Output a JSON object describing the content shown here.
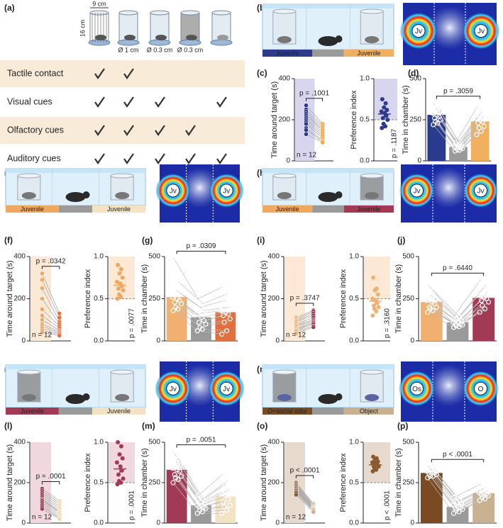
{
  "panels": [
    "(a)",
    "(b)",
    "(c)",
    "(d)",
    "(e)",
    "(f)",
    "(g)",
    "(h)",
    "(i)",
    "(j)",
    "(k)",
    "(l)",
    "(m)",
    "(n)",
    "(o)",
    "(p)"
  ],
  "cage_dims": {
    "width": "9 cm",
    "height": "16 cm"
  },
  "cage_labels": [
    "Ø 1 cm",
    "Ø 0.3 cm",
    "Ø 0.3 cm"
  ],
  "table": {
    "rows": [
      {
        "label": "Tactile contact",
        "checks": [
          true,
          true,
          false,
          false,
          false
        ]
      },
      {
        "label": "Visual cues",
        "checks": [
          true,
          true,
          true,
          false,
          true
        ]
      },
      {
        "label": "Olfactory cues",
        "checks": [
          true,
          true,
          true,
          true,
          false
        ]
      },
      {
        "label": "Auditory cues",
        "checks": [
          true,
          true,
          true,
          true,
          true
        ]
      }
    ]
  },
  "scenes": [
    {
      "left": "Juvenile",
      "left_color": "#2d3a8c",
      "right": "Juvenile",
      "right_color": "#f0b060",
      "heat_left": "Jv",
      "heat_right": "Jv"
    },
    {
      "left": "Juvenile",
      "left_color": "#f0a860",
      "right": "Juvenile",
      "right_color": "#f3e3c4",
      "heat_left": "Jv",
      "heat_right": "Jv"
    },
    {
      "left": "Juvenile",
      "left_color": "#f0a860",
      "right": "Juvenile",
      "right_color": "#a33a55",
      "heat_left": "Jv",
      "heat_right": "Jv"
    },
    {
      "left": "Juvenile",
      "left_color": "#a33a55",
      "right": "Juvenile",
      "right_color": "#f3e3c4",
      "heat_left": "Jv",
      "heat_right": "Jv"
    },
    {
      "left": "O+social odor",
      "left_color": "#7a4a22",
      "right": "Object",
      "right_color": "#c8b090",
      "heat_left": "Os",
      "heat_right": "O"
    }
  ],
  "chart_data": [
    {
      "type": "paired",
      "ylabel": "Time around target (s)",
      "ylim": [
        0,
        400
      ],
      "yticks": [
        0,
        200,
        400
      ],
      "shade": "#d8d5ee",
      "p_label": "p = .1001",
      "n_label": "n = 12",
      "series": [
        {
          "color": "#2d3a8c",
          "values": [
            270,
            250,
            240,
            230,
            220,
            210,
            200,
            190,
            180,
            160,
            150,
            130
          ]
        },
        {
          "color": "#f0a64e",
          "values": [
            180,
            170,
            160,
            150,
            150,
            140,
            130,
            120,
            110,
            100,
            95,
            90
          ]
        }
      ]
    },
    {
      "type": "strip",
      "ylabel": "Preference index",
      "ylim": [
        0,
        1
      ],
      "yticks": [
        {
          "value": 0,
          "label": "0.0"
        },
        {
          "value": 0.5,
          "label": "0.5"
        },
        {
          "value": 1,
          "label": "1.0"
        }
      ],
      "chance": 0.5,
      "shade": "#d8d5ee",
      "color": "#2d3a8c",
      "values": [
        0.75,
        0.7,
        0.65,
        0.62,
        0.6,
        0.58,
        0.55,
        0.52,
        0.5,
        0.45,
        0.42,
        0.4
      ],
      "mean": 0.57,
      "sem": 0.04,
      "p_label": "p = .1187"
    },
    {
      "type": "bar",
      "ylabel": "Time in chamber (s)",
      "ylim": [
        0,
        500
      ],
      "yticks": [
        0,
        250,
        500
      ],
      "p_label": "p = .3059",
      "series": [
        {
          "color": "#2a3a8e",
          "value": 280,
          "points": [
            350,
            330,
            320,
            300,
            290,
            280,
            270,
            260,
            250,
            240,
            230,
            220
          ]
        },
        {
          "color": "#9a9a9a",
          "value": 85,
          "points": [
            110,
            100,
            95,
            90,
            85,
            85,
            80,
            80,
            75,
            70,
            65,
            60
          ]
        },
        {
          "color": "#f0b060",
          "value": 240,
          "points": [
            330,
            300,
            280,
            270,
            260,
            250,
            240,
            230,
            210,
            200,
            180,
            160
          ]
        }
      ]
    },
    {
      "type": "paired",
      "ylabel": "Time around target (s)",
      "ylim": [
        0,
        400
      ],
      "yticks": [
        0,
        200,
        400
      ],
      "shade": "#fbe9d6",
      "p_label": "p = .0342",
      "n_label": "n = 12",
      "series": [
        {
          "color": "#f0a860",
          "values": [
            320,
            290,
            250,
            200,
            150,
            120,
            100,
            80,
            70,
            60,
            50,
            40
          ]
        },
        {
          "color": "#e8703a",
          "values": [
            130,
            110,
            90,
            80,
            70,
            60,
            50,
            45,
            40,
            35,
            30,
            25
          ]
        }
      ]
    },
    {
      "type": "strip",
      "ylabel": "Preference index",
      "ylim": [
        0,
        1
      ],
      "yticks": [
        {
          "value": 0,
          "label": "0.0"
        },
        {
          "value": 0.5,
          "label": "0.5"
        },
        {
          "value": 1,
          "label": "1.0"
        }
      ],
      "chance": 0.5,
      "shade": "#fbe9d6",
      "color": "#f0a860",
      "values": [
        0.9,
        0.85,
        0.8,
        0.75,
        0.7,
        0.68,
        0.65,
        0.62,
        0.6,
        0.55,
        0.52,
        0.5
      ],
      "mean": 0.66,
      "sem": 0.04,
      "p_label": "p = .0077"
    },
    {
      "type": "bar",
      "ylabel": "Time in chamber (s)",
      "ylim": [
        0,
        500
      ],
      "yticks": [
        0,
        250,
        500
      ],
      "p_label": "p = .0309",
      "series": [
        {
          "color": "#f0b070",
          "value": 260,
          "points": [
            490,
            350,
            300,
            280,
            260,
            250,
            240,
            230,
            220,
            200,
            190,
            180
          ]
        },
        {
          "color": "#9a9a9a",
          "value": 140,
          "points": [
            250,
            220,
            200,
            180,
            160,
            140,
            120,
            110,
            100,
            80,
            70,
            60
          ]
        },
        {
          "color": "#e07040",
          "value": 170,
          "points": [
            320,
            280,
            240,
            200,
            180,
            170,
            160,
            150,
            130,
            110,
            60,
            40
          ]
        }
      ]
    },
    {
      "type": "paired",
      "ylabel": "Time around target (s)",
      "ylim": [
        0,
        400
      ],
      "yticks": [
        0,
        200,
        400
      ],
      "shade": "#fbe9d6",
      "p_label": "p = .3747",
      "n_label": "n = 12",
      "series": [
        {
          "color": "#f0b070",
          "values": [
            110,
            100,
            95,
            90,
            80,
            75,
            70,
            60,
            55,
            50,
            45,
            35
          ]
        },
        {
          "color": "#a33a55",
          "values": [
            145,
            140,
            130,
            120,
            110,
            100,
            95,
            90,
            85,
            80,
            70,
            65
          ]
        }
      ]
    },
    {
      "type": "strip",
      "ylabel": "Preference index",
      "ylim": [
        0,
        1
      ],
      "yticks": [
        {
          "value": 0,
          "label": "0.0"
        },
        {
          "value": 0.5,
          "label": "0.5"
        },
        {
          "value": 1,
          "label": "1.0"
        }
      ],
      "chance": 0.5,
      "shade": "#fbe9d6",
      "color": "#f0b070",
      "values": [
        0.75,
        0.62,
        0.6,
        0.55,
        0.5,
        0.48,
        0.45,
        0.42,
        0.4,
        0.38,
        0.35,
        0.3
      ],
      "mean": 0.47,
      "sem": 0.04,
      "p_label": "p = .3160"
    },
    {
      "type": "bar",
      "ylabel": "Time in chamber (s)",
      "ylim": [
        0,
        500
      ],
      "yticks": [
        0,
        250,
        500
      ],
      "p_label": "p = .6440",
      "series": [
        {
          "color": "#f0b070",
          "value": 230,
          "points": [
            330,
            300,
            270,
            250,
            240,
            230,
            220,
            200,
            200,
            190,
            180,
            170
          ]
        },
        {
          "color": "#9a9a9a",
          "value": 110,
          "points": [
            150,
            140,
            130,
            120,
            110,
            110,
            100,
            100,
            95,
            90,
            85,
            80
          ]
        },
        {
          "color": "#a33a55",
          "value": 255,
          "points": [
            360,
            330,
            310,
            290,
            270,
            260,
            250,
            240,
            230,
            210,
            190,
            170
          ]
        }
      ]
    },
    {
      "type": "paired",
      "ylabel": "Time around target (s)",
      "ylim": [
        0,
        400
      ],
      "yticks": [
        0,
        200,
        400
      ],
      "shade": "#f0d8de",
      "p_label": "p = .0001",
      "n_label": "n = 12",
      "series": [
        {
          "color": "#a33a55",
          "values": [
            170,
            160,
            150,
            140,
            130,
            120,
            115,
            110,
            100,
            90,
            80,
            70
          ]
        },
        {
          "color": "#f0dcb0",
          "values": [
            110,
            100,
            90,
            80,
            70,
            60,
            55,
            50,
            40,
            30,
            25,
            20
          ]
        }
      ]
    },
    {
      "type": "strip",
      "ylabel": "Preference index",
      "ylim": [
        0,
        1
      ],
      "yticks": [
        {
          "value": 0,
          "label": "0.0"
        },
        {
          "value": 0.5,
          "label": "0.5"
        },
        {
          "value": 1,
          "label": "1.0"
        }
      ],
      "chance": 0.5,
      "shade": "#f0d8de",
      "color": "#a33a55",
      "values": [
        1.0,
        0.95,
        0.85,
        0.8,
        0.75,
        0.7,
        0.65,
        0.6,
        0.55,
        0.52,
        0.5,
        0.48
      ],
      "mean": 0.67,
      "sem": 0.05,
      "p_label": "p = .0001"
    },
    {
      "type": "bar",
      "ylabel": "Time in chamber (s)",
      "ylim": [
        0,
        500
      ],
      "yticks": [
        0,
        250,
        500
      ],
      "p_label": "p = .0051",
      "series": [
        {
          "color": "#a33a55",
          "value": 330,
          "points": [
            440,
            400,
            380,
            360,
            340,
            330,
            320,
            300,
            290,
            280,
            270,
            250
          ]
        },
        {
          "color": "#9a9a9a",
          "value": 110,
          "points": [
            170,
            150,
            130,
            120,
            110,
            110,
            100,
            100,
            90,
            80,
            70,
            60
          ]
        },
        {
          "color": "#f3e3c4",
          "value": 165,
          "points": [
            300,
            260,
            240,
            210,
            190,
            170,
            150,
            130,
            110,
            100,
            80,
            60
          ]
        }
      ]
    },
    {
      "type": "paired",
      "ylabel": "Time around target (s)",
      "ylim": [
        0,
        400
      ],
      "yticks": [
        0,
        200,
        400
      ],
      "shade": "#e6d9ce",
      "p_label": "p < .0001",
      "n_label": "n = 12",
      "series": [
        {
          "color": "#8a5a2e",
          "values": [
            200,
            195,
            190,
            185,
            180,
            175,
            170,
            165,
            160,
            155,
            150,
            140
          ]
        },
        {
          "color": "#c8b090",
          "values": [
            95,
            90,
            85,
            80,
            78,
            75,
            72,
            70,
            68,
            65,
            60,
            55
          ]
        }
      ]
    },
    {
      "type": "strip",
      "ylabel": "Preference index",
      "ylim": [
        0,
        1
      ],
      "yticks": [
        {
          "value": 0,
          "label": "0.0"
        },
        {
          "value": 0.5,
          "label": "0.5"
        },
        {
          "value": 1,
          "label": "1.0"
        }
      ],
      "chance": 0.5,
      "shade": "#e6d9ce",
      "color": "#8a5a2e",
      "values": [
        0.82,
        0.8,
        0.78,
        0.76,
        0.75,
        0.74,
        0.72,
        0.7,
        0.7,
        0.68,
        0.66,
        0.64
      ],
      "mean": 0.72,
      "sem": 0.02,
      "p_label": "p < .0001"
    },
    {
      "type": "bar",
      "ylabel": "Time in chamber (s)",
      "ylim": [
        0,
        500
      ],
      "yticks": [
        0,
        250,
        500
      ],
      "p_label": "p < .0001",
      "series": [
        {
          "color": "#7a4a22",
          "value": 310,
          "points": [
            350,
            340,
            330,
            320,
            320,
            310,
            310,
            300,
            300,
            290,
            290,
            280
          ]
        },
        {
          "color": "#9a9a9a",
          "value": 100,
          "points": [
            160,
            140,
            130,
            120,
            110,
            100,
            95,
            90,
            85,
            80,
            70,
            60
          ]
        },
        {
          "color": "#c8b090",
          "value": 185,
          "points": [
            240,
            220,
            210,
            200,
            190,
            185,
            180,
            175,
            170,
            160,
            150,
            140
          ]
        }
      ]
    }
  ]
}
